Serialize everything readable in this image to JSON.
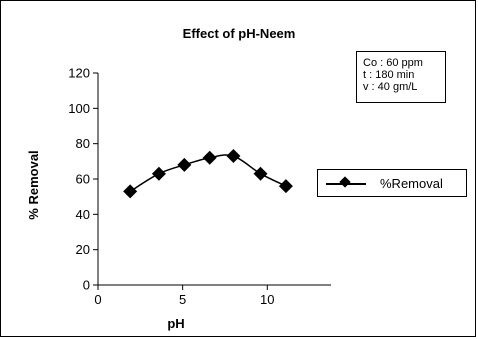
{
  "chart_data": {
    "type": "line",
    "title": "Effect of pH-Neem",
    "xlabel": "pH",
    "ylabel": "% Removal",
    "xlim": [
      0,
      14
    ],
    "ylim": [
      0,
      120
    ],
    "x_ticks": [
      0,
      5,
      10
    ],
    "y_ticks": [
      0,
      20,
      40,
      60,
      80,
      100,
      120
    ],
    "grid": false,
    "legend_position": "right",
    "series": [
      {
        "name": "%Removal",
        "marker": "diamond",
        "color": "#000000",
        "x": [
          1.9,
          3.6,
          5.1,
          6.6,
          8.0,
          9.6,
          11.1
        ],
        "y": [
          53,
          63,
          68,
          72,
          73,
          63,
          56
        ]
      }
    ],
    "annotations": [
      "Co : 60 ppm",
      "t : 180 min",
      "v : 40 gm/L"
    ]
  }
}
